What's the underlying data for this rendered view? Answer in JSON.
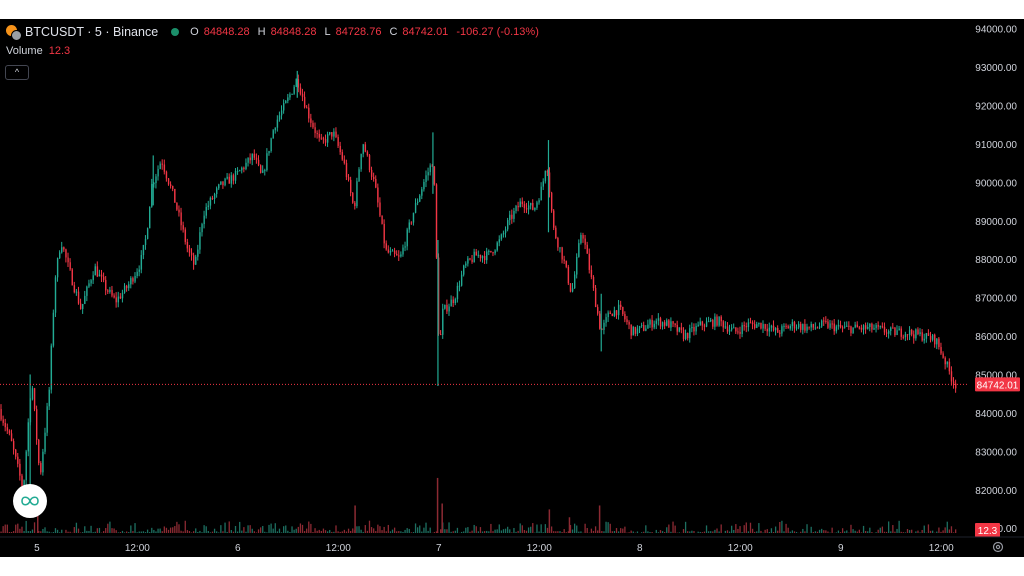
{
  "header": {
    "symbol": "BTCUSDT · 5 · Binance",
    "open_key": "O",
    "open": "84848.28",
    "high_key": "H",
    "high": "84848.28",
    "low_key": "L",
    "low": "84728.76",
    "close_key": "C",
    "close": "84742.01",
    "change": "-106.27 (-0.13%)"
  },
  "volume_legend": {
    "label": "Volume",
    "value": "12.3"
  },
  "controls": {
    "collapse": "^"
  },
  "icons": {
    "coin": "btc-coin-icon",
    "logo": "tradingview-logo-icon",
    "settings": "gear-icon"
  },
  "colors": {
    "up": "#22ab94",
    "down": "#f23645",
    "background": "#000000",
    "axis_text": "#d1d4dc"
  },
  "chart_data": {
    "type": "candlestick",
    "y_ticks": [
      "94000.00",
      "93000.00",
      "92000.00",
      "91000.00",
      "90000.00",
      "89000.00",
      "88000.00",
      "87000.00",
      "86000.00",
      "85000.00",
      "84000.00",
      "83000.00",
      "82000.00",
      "81000.00"
    ],
    "y_tick_values": [
      94000,
      93000,
      92000,
      91000,
      90000,
      89000,
      88000,
      87000,
      86000,
      85000,
      84000,
      83000,
      82000,
      81000
    ],
    "ylim": [
      80250,
      94250
    ],
    "x_ticks": [
      "5",
      "12:00",
      "6",
      "12:00",
      "7",
      "12:00",
      "8",
      "12:00",
      "9",
      "12:00"
    ],
    "x_tick_hours": [
      24,
      36,
      48,
      60,
      72,
      84,
      96,
      108,
      120,
      132
    ],
    "xlim": [
      19.6,
      135.2
    ],
    "last_price": "84742.01",
    "last_volume": "12.3",
    "price_path": [
      [
        19.6,
        84100
      ],
      [
        21.0,
        83300
      ],
      [
        22.5,
        82000
      ],
      [
        23.5,
        84900
      ],
      [
        24.5,
        82300
      ],
      [
        25.6,
        84600
      ],
      [
        26.3,
        87500
      ],
      [
        27.0,
        88500
      ],
      [
        28.0,
        87700
      ],
      [
        29.4,
        86700
      ],
      [
        31.0,
        87800
      ],
      [
        32.2,
        87300
      ],
      [
        33.5,
        86900
      ],
      [
        35.0,
        87300
      ],
      [
        36.5,
        87900
      ],
      [
        37.2,
        88600
      ],
      [
        37.8,
        89900
      ],
      [
        39.0,
        90600
      ],
      [
        40.5,
        89600
      ],
      [
        42.2,
        88200
      ],
      [
        43.0,
        87800
      ],
      [
        44.0,
        89200
      ],
      [
        46.0,
        89900
      ],
      [
        48.0,
        90200
      ],
      [
        50.0,
        90700
      ],
      [
        51.0,
        90100
      ],
      [
        52.5,
        91500
      ],
      [
        54.0,
        92100
      ],
      [
        55.2,
        92700
      ],
      [
        56.5,
        91800
      ],
      [
        58.0,
        91000
      ],
      [
        59.5,
        91300
      ],
      [
        60.8,
        90500
      ],
      [
        62.0,
        89300
      ],
      [
        63.0,
        91100
      ],
      [
        64.5,
        89900
      ],
      [
        65.8,
        88200
      ],
      [
        67.5,
        88000
      ],
      [
        69.2,
        89300
      ],
      [
        70.5,
        90100
      ],
      [
        71.5,
        90600
      ],
      [
        72.2,
        85400
      ],
      [
        72.5,
        86600
      ],
      [
        74.0,
        87000
      ],
      [
        75.2,
        87800
      ],
      [
        76.5,
        88100
      ],
      [
        78.0,
        88100
      ],
      [
        79.5,
        88500
      ],
      [
        80.5,
        89000
      ],
      [
        82.0,
        89500
      ],
      [
        83.5,
        89300
      ],
      [
        84.5,
        89900
      ],
      [
        85.0,
        90600
      ],
      [
        85.8,
        88800
      ],
      [
        87.0,
        88000
      ],
      [
        88.0,
        87100
      ],
      [
        89.2,
        88800
      ],
      [
        90.5,
        87300
      ],
      [
        91.5,
        86100
      ],
      [
        92.5,
        86600
      ],
      [
        93.7,
        86700
      ],
      [
        95.2,
        86100
      ],
      [
        96.5,
        86200
      ],
      [
        98.0,
        86400
      ],
      [
        99.7,
        86300
      ],
      [
        101.5,
        86000
      ],
      [
        103.5,
        86300
      ],
      [
        105.5,
        86400
      ],
      [
        107.5,
        86100
      ],
      [
        109.0,
        86300
      ],
      [
        110.8,
        86300
      ],
      [
        112.5,
        86100
      ],
      [
        114.5,
        86300
      ],
      [
        116.5,
        86200
      ],
      [
        118.2,
        86300
      ],
      [
        120.0,
        86200
      ],
      [
        122.0,
        86200
      ],
      [
        124.0,
        86200
      ],
      [
        126.0,
        86100
      ],
      [
        128.0,
        86100
      ],
      [
        130.0,
        86000
      ],
      [
        131.5,
        85900
      ],
      [
        132.5,
        85400
      ],
      [
        133.4,
        84900
      ],
      [
        133.8,
        84742
      ]
    ],
    "wicks": [
      {
        "x": 23.2,
        "high": 85000,
        "low": 81700
      },
      {
        "x": 37.9,
        "high": 90700,
        "low": 89400
      },
      {
        "x": 55.1,
        "high": 92900,
        "low": 92200
      },
      {
        "x": 71.3,
        "high": 91300,
        "low": 89700
      },
      {
        "x": 71.9,
        "high": 88500,
        "low": 84700
      },
      {
        "x": 85.1,
        "high": 91100,
        "low": 88700
      },
      {
        "x": 91.4,
        "high": 87100,
        "low": 85600
      }
    ],
    "volume_spikes": [
      {
        "x": 71.85,
        "value": 140
      },
      {
        "x": 72.4,
        "value": 75
      },
      {
        "x": 62.0,
        "value": 70
      },
      {
        "x": 91.2,
        "value": 70
      },
      {
        "x": 85.2,
        "value": 60
      },
      {
        "x": 24.1,
        "value": 55
      },
      {
        "x": 87.6,
        "value": 40
      }
    ],
    "volume_max": 150
  }
}
